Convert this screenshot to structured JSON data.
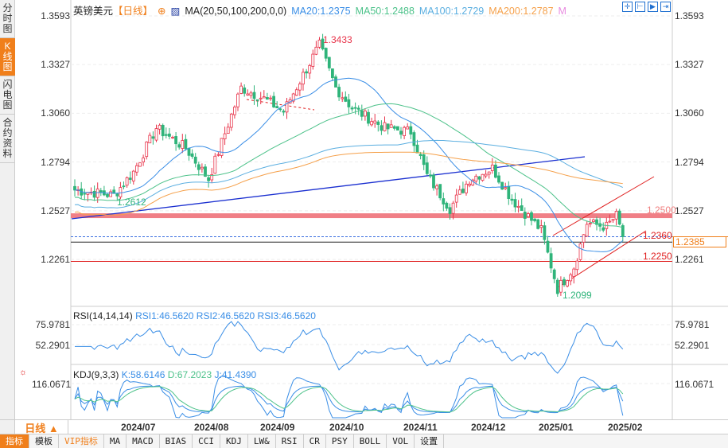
{
  "sidebar": [
    {
      "label": "分时图",
      "active": false
    },
    {
      "label": "K线图",
      "active": true
    },
    {
      "label": "闪电图",
      "active": false
    },
    {
      "label": "合约资料",
      "active": false
    }
  ],
  "legend": {
    "symbol": "英镑美元",
    "period": "【日线】",
    "ma_title": "MA(20,50,100,200,0,0)",
    "ma20": "MA20:1.2375",
    "ma50": "MA50:1.2488",
    "ma100": "MA100:1.2729",
    "ma200": "MA200:1.2787",
    "more": "M"
  },
  "colors": {
    "up": "#e8334a",
    "down": "#2fb47a",
    "ma20": "#3a8ee6",
    "ma50": "#4dc28a",
    "ma100": "#5aaee0",
    "ma200": "#f5a04a"
  },
  "price_axis": [
    "1.3593",
    "1.3327",
    "1.3060",
    "1.2794",
    "1.2527",
    "1.2261"
  ],
  "annotations": {
    "high": "1.3433",
    "low_left": "1.2612",
    "low": "1.2099",
    "level1": "1.2500",
    "level2": "1.2360",
    "level3": "1.2250",
    "current": "1.2385"
  },
  "rsi": {
    "title": "RSI(14,14,14)",
    "rsi1": "RSI1:46.5620",
    "rsi2": "RSI2:46.5620",
    "rsi3": "RSI3:46.5620",
    "axis": [
      "75.9781",
      "52.2901"
    ]
  },
  "kdj": {
    "title": "KDJ(9,3,3)",
    "k": "K:58.6146",
    "d": "D:67.2023",
    "j": "J:41.4390",
    "axis": [
      "116.0671"
    ]
  },
  "dates": [
    "2024/07",
    "2024/08",
    "2024/09",
    "2024/10",
    "2024/11",
    "2024/12",
    "2025/01",
    "2025/02"
  ],
  "period_label": "日线 ▲",
  "toolbar": [
    "指标",
    "模板",
    "VIP指标",
    "MA",
    "MACD",
    "BIAS",
    "CCI",
    "KDJ",
    "LW&",
    "RSI",
    "CR",
    "PSY",
    "BOLL",
    "VOL",
    "设置"
  ],
  "chart_data": {
    "type": "candlestick",
    "title": "英镑美元 日线",
    "ylim": [
      1.2099,
      1.3593
    ],
    "close_keypoints": [
      [
        0,
        1.264
      ],
      [
        12,
        1.2612
      ],
      [
        18,
        1.274
      ],
      [
        25,
        1.298
      ],
      [
        34,
        1.287
      ],
      [
        41,
        1.27
      ],
      [
        51,
        1.32
      ],
      [
        58,
        1.314
      ],
      [
        64,
        1.307
      ],
      [
        70,
        1.327
      ],
      [
        75,
        1.3433
      ],
      [
        80,
        1.32
      ],
      [
        85,
        1.309
      ],
      [
        95,
        1.298
      ],
      [
        103,
        1.296
      ],
      [
        108,
        1.272
      ],
      [
        115,
        1.254
      ],
      [
        121,
        1.27
      ],
      [
        128,
        1.276
      ],
      [
        134,
        1.259
      ],
      [
        143,
        1.242
      ],
      [
        148,
        1.2099
      ],
      [
        153,
        1.222
      ],
      [
        157,
        1.246
      ],
      [
        163,
        1.244
      ],
      [
        166,
        1.25
      ],
      [
        168,
        1.2385
      ]
    ]
  }
}
